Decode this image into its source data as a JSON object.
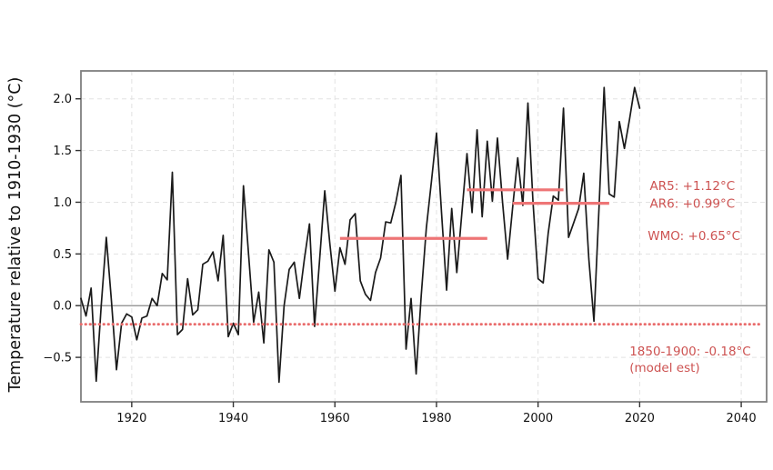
{
  "chart_data": {
    "type": "line",
    "title": "",
    "xlabel": "",
    "ylabel": "Temperature relative to 1910-1930 (°C)",
    "xlim": [
      1910,
      2045
    ],
    "ylim": [
      -0.93,
      2.27
    ],
    "grid": true,
    "legend": "none",
    "x_ticks": [
      {
        "v": 1920,
        "label": "1920"
      },
      {
        "v": 1940,
        "label": "1940"
      },
      {
        "v": 1960,
        "label": "1960"
      },
      {
        "v": 1980,
        "label": "1980"
      },
      {
        "v": 2000,
        "label": "2000"
      },
      {
        "v": 2020,
        "label": "2020"
      },
      {
        "v": 2040,
        "label": "2040"
      }
    ],
    "y_ticks": [
      {
        "v": -0.5,
        "label": "−0.5"
      },
      {
        "v": 0.0,
        "label": "0.0"
      },
      {
        "v": 0.5,
        "label": "0.5"
      },
      {
        "v": 1.0,
        "label": "1.0"
      },
      {
        "v": 1.5,
        "label": "1.5"
      },
      {
        "v": 2.0,
        "label": "2.0"
      }
    ],
    "series": [
      {
        "name": "annual-temperature-anomaly",
        "x_start": 1910,
        "x_end": 2020,
        "x_step": 1,
        "values": [
          0.07,
          -0.1,
          0.17,
          -0.73,
          0.0,
          0.66,
          0.05,
          -0.62,
          -0.17,
          -0.08,
          -0.11,
          -0.33,
          -0.12,
          -0.1,
          0.07,
          0.0,
          0.31,
          0.25,
          1.29,
          -0.28,
          -0.23,
          0.26,
          -0.09,
          -0.04,
          0.4,
          0.43,
          0.52,
          0.24,
          0.68,
          -0.3,
          -0.17,
          -0.28,
          1.16,
          0.5,
          -0.16,
          0.13,
          -0.36,
          0.54,
          0.42,
          -0.74,
          0.0,
          0.35,
          0.42,
          0.07,
          0.45,
          0.79,
          -0.2,
          0.45,
          1.11,
          0.6,
          0.14,
          0.56,
          0.4,
          0.83,
          0.89,
          0.24,
          0.11,
          0.05,
          0.32,
          0.46,
          0.81,
          0.8,
          1.0,
          1.26,
          -0.42,
          0.07,
          -0.66,
          0.1,
          0.75,
          1.2,
          1.67,
          0.9,
          0.15,
          0.94,
          0.32,
          0.9,
          1.47,
          0.9,
          1.7,
          0.86,
          1.59,
          1.01,
          1.62,
          1.0,
          0.45,
          0.95,
          1.43,
          0.97,
          1.96,
          1.0,
          0.26,
          0.22,
          0.7,
          1.06,
          1.02,
          1.91,
          0.66,
          0.8,
          0.94,
          1.28,
          0.45,
          -0.15,
          0.95,
          2.11,
          1.08,
          1.05,
          1.78,
          1.52,
          1.8,
          2.11,
          1.91
        ]
      }
    ],
    "reference_segments": [
      {
        "name": "wmo-baseline",
        "value": 0.65,
        "x_start": 1961,
        "x_end": 1990
      },
      {
        "name": "ar5-baseline",
        "value": 1.12,
        "x_start": 1986,
        "x_end": 2005
      },
      {
        "name": "ar6-baseline",
        "value": 0.99,
        "x_start": 1995,
        "x_end": 2014
      }
    ],
    "baseline_dotted": {
      "value": -0.18,
      "style": "dotted"
    },
    "annotations": [
      {
        "name": "ar5-label",
        "text": "AR5: +1.12°C",
        "x": 2022.0,
        "y": 1.16
      },
      {
        "name": "ar6-label",
        "text": "AR6: +0.99°C",
        "x": 2022.0,
        "y": 0.985
      },
      {
        "name": "wmo-label",
        "text": "WMO: +0.65°C",
        "x": 2021.6,
        "y": 0.675
      },
      {
        "name": "baseline-label-line1",
        "text": "1850-1900: -0.18°C",
        "x": 2018.0,
        "y": -0.44
      },
      {
        "name": "baseline-label-line2",
        "text": "(model est)",
        "x": 2018.0,
        "y": -0.6
      }
    ],
    "colors": {
      "line": "#1a1a1a",
      "annotation_text": "#cd5352",
      "reference_segment": "#ee7576",
      "baseline_dotted": "#e96b6b",
      "grid": "#e2e2e2",
      "zero_line": "#8a8a8a",
      "frame": "#808080",
      "tick_text": "#111111"
    }
  }
}
